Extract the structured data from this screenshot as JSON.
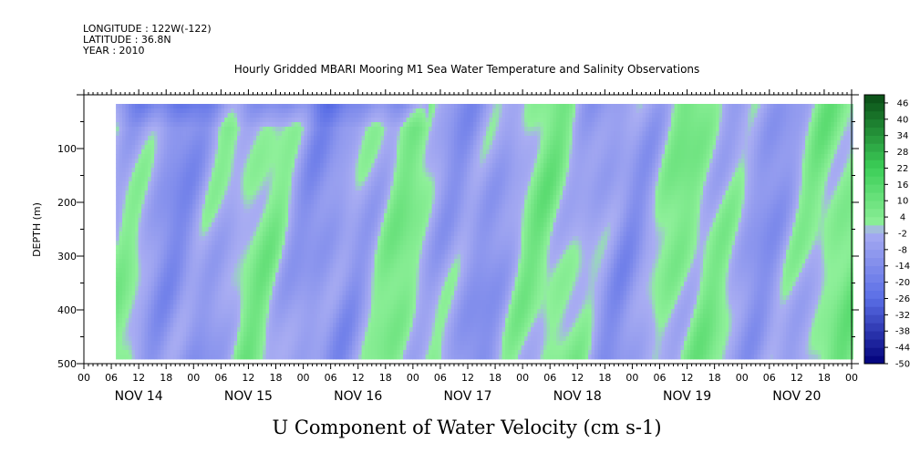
{
  "header": {
    "longitude": "LONGITUDE : 122W(-122)",
    "latitude": "LATITUDE : 36.8N",
    "year": "YEAR : 2010",
    "title": "Hourly Gridded MBARI Mooring M1 Sea Water Temperature and Salinity Observations"
  },
  "chart_data": {
    "type": "heatmap",
    "title": "Hourly Gridded MBARI Mooring M1 Sea Water Temperature and Salinity Observations",
    "xlabel": "U Component of Water Velocity (cm s-1)",
    "ylabel": "DEPTH (m)",
    "y_ticks": [
      100,
      200,
      300,
      400,
      500
    ],
    "ylim": [
      500,
      0
    ],
    "x_hour_labels": [
      "00",
      "06",
      "12",
      "18",
      "00",
      "06",
      "12",
      "18",
      "00",
      "06",
      "12",
      "18",
      "00",
      "06",
      "12",
      "18",
      "00",
      "06",
      "12",
      "18",
      "00",
      "06",
      "12",
      "18",
      "00",
      "06",
      "12",
      "18",
      "00"
    ],
    "day_labels": [
      "NOV 14",
      "NOV 15",
      "NOV 16",
      "NOV 17",
      "NOV 18",
      "NOV 19",
      "NOV 20"
    ],
    "colorbar": {
      "labels": [
        "46",
        "40",
        "34",
        "28",
        "22",
        "16",
        "10",
        "4",
        "-2",
        "-8",
        "-14",
        "-20",
        "-26",
        "-32",
        "-38",
        "-44",
        "-50"
      ],
      "range": [
        -50,
        49
      ],
      "colors": {
        "high": "#0a4d16",
        "mid_high": "#3ccf58",
        "neutral_pos": "#8ff09a",
        "neutral_neg": "#a9adf2",
        "mid_low": "#5a6ee6",
        "low": "#00007a"
      }
    },
    "data_extent": {
      "start_hour": 7,
      "end_hour": 168,
      "top_depth": 17,
      "bottom_depth": 485
    }
  }
}
